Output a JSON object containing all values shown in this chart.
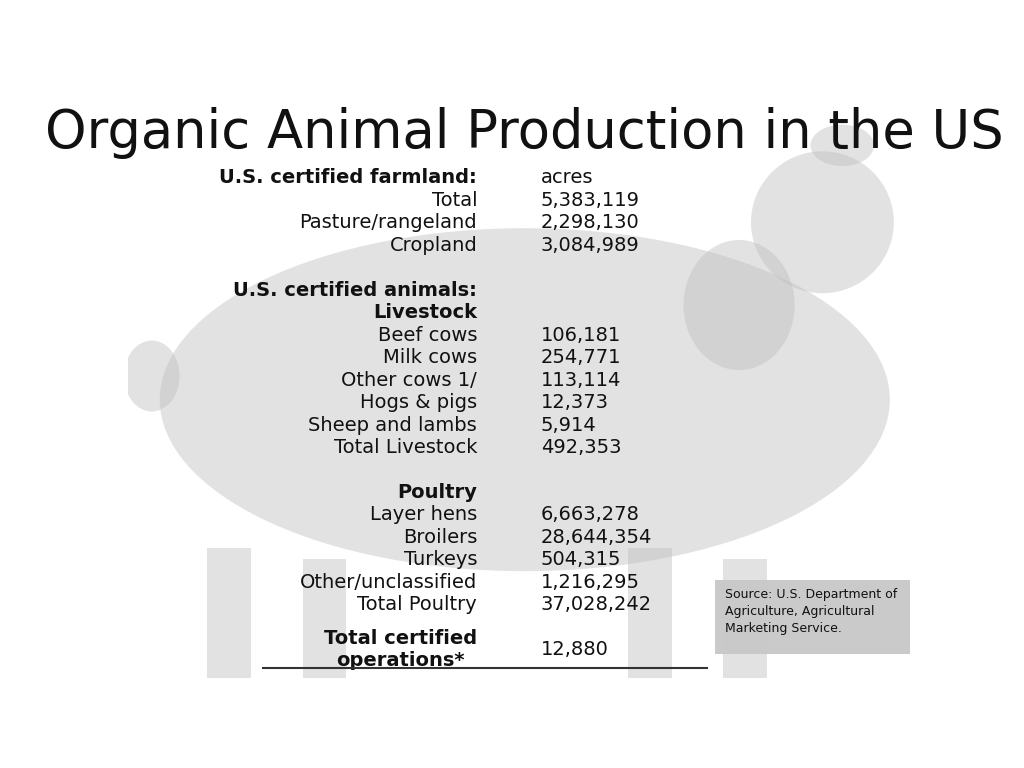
{
  "title": "Organic Animal Production in the US",
  "title_fontsize": 38,
  "background_color": "#ffffff",
  "rows": [
    {
      "label": "U.S. certified farmland:",
      "value": "acres",
      "bold_label": true,
      "bold_value": false,
      "indent": 0
    },
    {
      "label": "Total",
      "value": "5,383,119",
      "bold_label": false,
      "bold_value": false,
      "indent": 1
    },
    {
      "label": "Pasture/rangeland",
      "value": "2,298,130",
      "bold_label": false,
      "bold_value": false,
      "indent": 1
    },
    {
      "label": "Cropland",
      "value": "3,084,989",
      "bold_label": false,
      "bold_value": false,
      "indent": 1
    },
    {
      "label": "",
      "value": "",
      "bold_label": false,
      "bold_value": false,
      "indent": 0
    },
    {
      "label": "U.S. certified animals:",
      "value": "",
      "bold_label": true,
      "bold_value": false,
      "indent": 0
    },
    {
      "label": "Livestock",
      "value": "",
      "bold_label": true,
      "bold_value": false,
      "indent": 1
    },
    {
      "label": "Beef cows",
      "value": "106,181",
      "bold_label": false,
      "bold_value": false,
      "indent": 2
    },
    {
      "label": "Milk cows",
      "value": "254,771",
      "bold_label": false,
      "bold_value": false,
      "indent": 2
    },
    {
      "label": "Other cows 1/",
      "value": "113,114",
      "bold_label": false,
      "bold_value": false,
      "indent": 2
    },
    {
      "label": "Hogs & pigs",
      "value": "12,373",
      "bold_label": false,
      "bold_value": false,
      "indent": 2
    },
    {
      "label": "Sheep and lambs",
      "value": "5,914",
      "bold_label": false,
      "bold_value": false,
      "indent": 2
    },
    {
      "label": "Total Livestock",
      "value": "492,353",
      "bold_label": false,
      "bold_value": false,
      "indent": 2
    },
    {
      "label": "",
      "value": "",
      "bold_label": false,
      "bold_value": false,
      "indent": 0
    },
    {
      "label": "Poultry",
      "value": "",
      "bold_label": true,
      "bold_value": false,
      "indent": 1
    },
    {
      "label": "Layer hens",
      "value": "6,663,278",
      "bold_label": false,
      "bold_value": false,
      "indent": 2
    },
    {
      "label": "Broilers",
      "value": "28,644,354",
      "bold_label": false,
      "bold_value": false,
      "indent": 2
    },
    {
      "label": "Turkeys",
      "value": "504,315",
      "bold_label": false,
      "bold_value": false,
      "indent": 2
    },
    {
      "label": "Other/unclassified",
      "value": "1,216,295",
      "bold_label": false,
      "bold_value": false,
      "indent": 2
    },
    {
      "label": "Total Poultry",
      "value": "37,028,242",
      "bold_label": false,
      "bold_value": false,
      "indent": 2
    },
    {
      "label": "",
      "value": "",
      "bold_label": false,
      "bold_value": false,
      "indent": 0
    },
    {
      "label": "Total certified\noperations*",
      "value": "12,880",
      "bold_label": true,
      "bold_value": false,
      "indent": 0
    }
  ],
  "source_text": "Source: U.S. Department of\nAgriculture, Agricultural\nMarketing Service.",
  "source_fontsize": 9,
  "cow_color": "#c0c0c0",
  "cow_alpha": 0.45,
  "source_box_color": "#c8c8c8",
  "line_color": "#333333"
}
